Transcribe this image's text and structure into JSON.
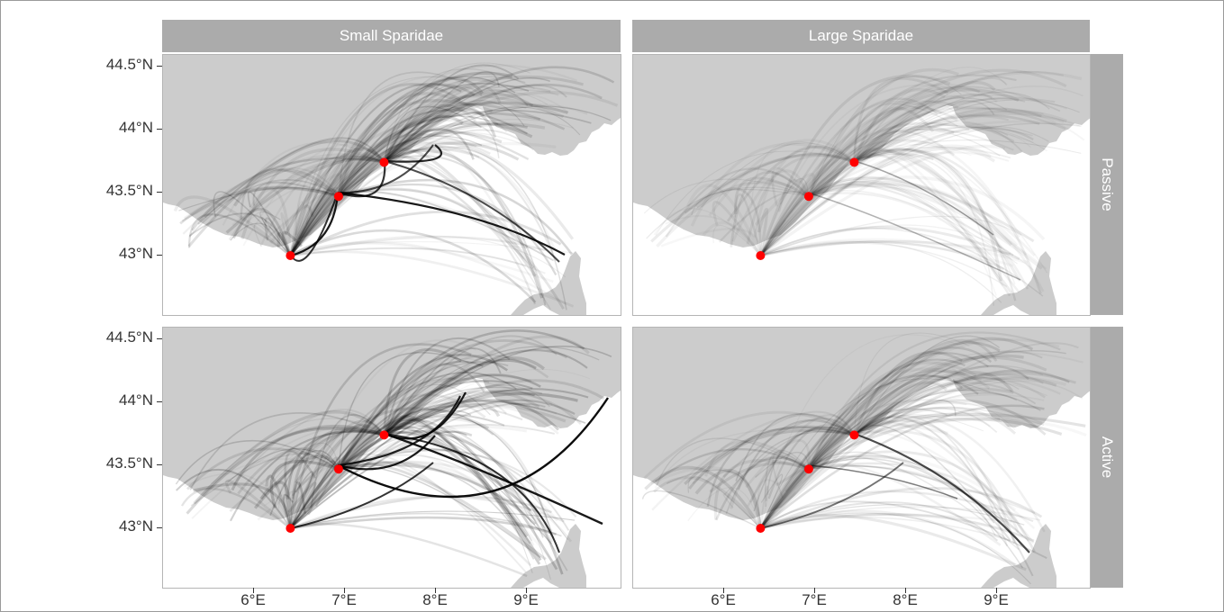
{
  "facets": {
    "columns": [
      "Small Sparidae",
      "Large Sparidae"
    ],
    "rows": [
      "Passive",
      "Active"
    ]
  },
  "axes": {
    "y_labels": [
      "44.5°N",
      "44°N",
      "43.5°N",
      "43°N"
    ],
    "x_labels": [
      "6°E",
      "7°E",
      "8°E",
      "9°E"
    ]
  },
  "colors": {
    "land": "#cccccc",
    "sea": "#ffffff",
    "strip": "#ababab",
    "site": "#ff0000",
    "paths": "#000000"
  },
  "sites": [
    {
      "lon": 6.4,
      "lat": 43.0
    },
    {
      "lon": 6.93,
      "lat": 43.47
    },
    {
      "lon": 7.43,
      "lat": 43.74
    }
  ],
  "intensity": {
    "small_passive": 0.55,
    "large_passive": 0.22,
    "small_active": 0.7,
    "large_active": 0.4
  }
}
